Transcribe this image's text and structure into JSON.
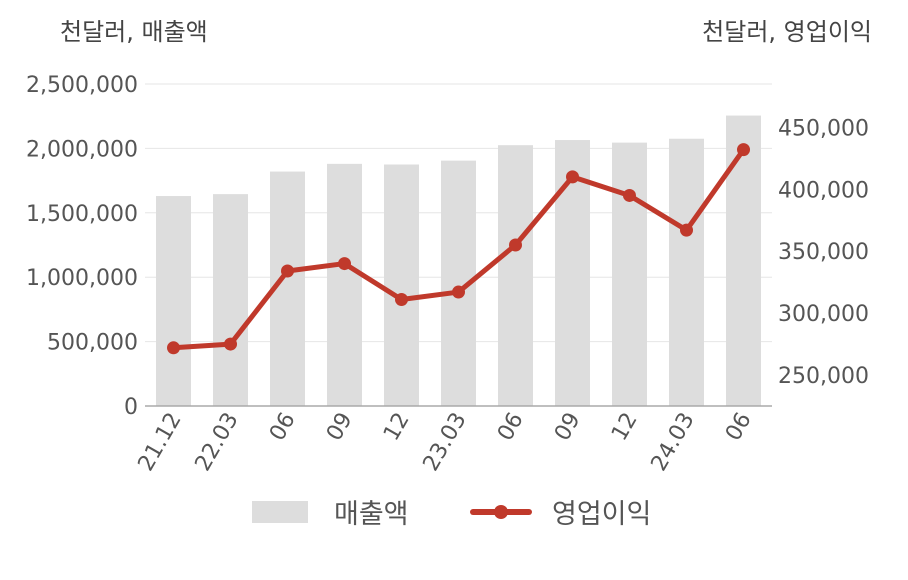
{
  "units": {
    "left": "천달러, 매출액",
    "right": "천달러, 영업이익"
  },
  "legend": {
    "bar_label": "매출액",
    "line_label": "영업이익"
  },
  "colors": {
    "bar": "#dddddd",
    "line": "#c0392b",
    "grid": "#e6e6e6",
    "axis": "#aaaaaa"
  },
  "chart_data": {
    "type": "bar+line",
    "categories": [
      "21.12",
      "22.03",
      "06",
      "09",
      "12",
      "23.03",
      "06",
      "09",
      "12",
      "24.03",
      "06"
    ],
    "series": [
      {
        "name": "매출액",
        "type": "bar",
        "axis": "left",
        "values": [
          1630000,
          1645000,
          1820000,
          1880000,
          1875000,
          1905000,
          2025000,
          2065000,
          2045000,
          2075000,
          2255000
        ]
      },
      {
        "name": "영업이익",
        "type": "line",
        "axis": "right",
        "values": [
          272000,
          275000,
          334000,
          340000,
          311000,
          317000,
          355000,
          410000,
          395000,
          367000,
          432000
        ]
      }
    ],
    "y_left": {
      "ylim": [
        0,
        2500000
      ],
      "ticks": [
        0,
        500000,
        1000000,
        1500000,
        2000000,
        2500000
      ],
      "tick_labels": [
        "0",
        "500,000",
        "1,000,000",
        "1,500,000",
        "2,000,000",
        "2,500,000"
      ]
    },
    "y_right": {
      "ylim": [
        225000,
        485000
      ],
      "ticks": [
        250000,
        300000,
        350000,
        400000,
        450000
      ],
      "tick_labels": [
        "250,000",
        "300,000",
        "350,000",
        "400,000",
        "450,000"
      ]
    },
    "grid": true,
    "legend_position": "bottom"
  }
}
